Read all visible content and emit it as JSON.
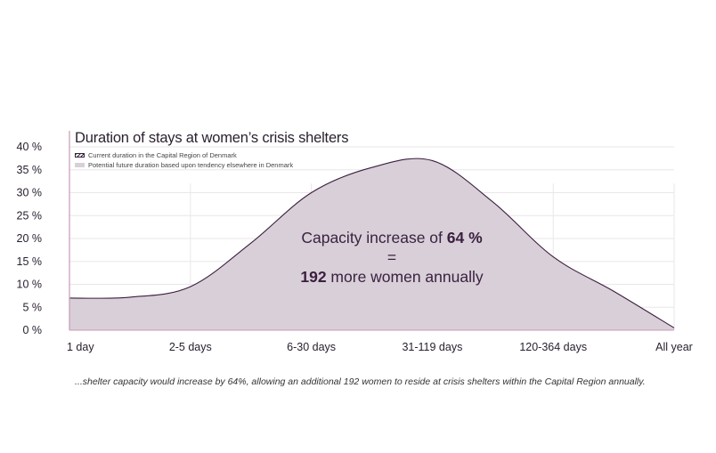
{
  "chart_data": {
    "type": "area",
    "title": "Duration of stays at women’s crisis shelters",
    "categories": [
      "1 day",
      "2-5 days",
      "6-30 days",
      "31-119 days",
      "120-364 days",
      "All year"
    ],
    "y_ticks": [
      "0 %",
      "5 %",
      "10 %",
      "15 %",
      "20 %",
      "25 %",
      "30 %",
      "35 %",
      "40 %"
    ],
    "ylim": [
      0,
      40
    ],
    "legend": [
      {
        "label": "Current duration in the Capital Region of Denmark",
        "style": "hatched",
        "color": "#3a1f3f"
      },
      {
        "label": "Potential future duration based upon tendency elsewhere in Denmark",
        "style": "filled",
        "color": "#d9cfd8"
      }
    ],
    "series": [
      {
        "x": [
          0,
          0.5,
          1,
          1.5,
          2,
          2.5,
          3,
          3.5,
          4,
          4.5,
          5
        ],
        "values": [
          7,
          7.2,
          9.5,
          19,
          30,
          35.5,
          37,
          28,
          16,
          8.5,
          0.5
        ]
      }
    ],
    "grid": true,
    "line_color": "#3a1f3f",
    "fill_color": "#d9cfd8"
  },
  "annotation": {
    "line1_prefix": "Capacity increase of ",
    "line1_value": "64 %",
    "line2": "=",
    "line3_value": "192",
    "line3_suffix": " more women annually"
  },
  "caption": "...shelter capacity would increase by 64%, allowing an additional 192 women to reside at crisis shelters within the Capital Region annually."
}
